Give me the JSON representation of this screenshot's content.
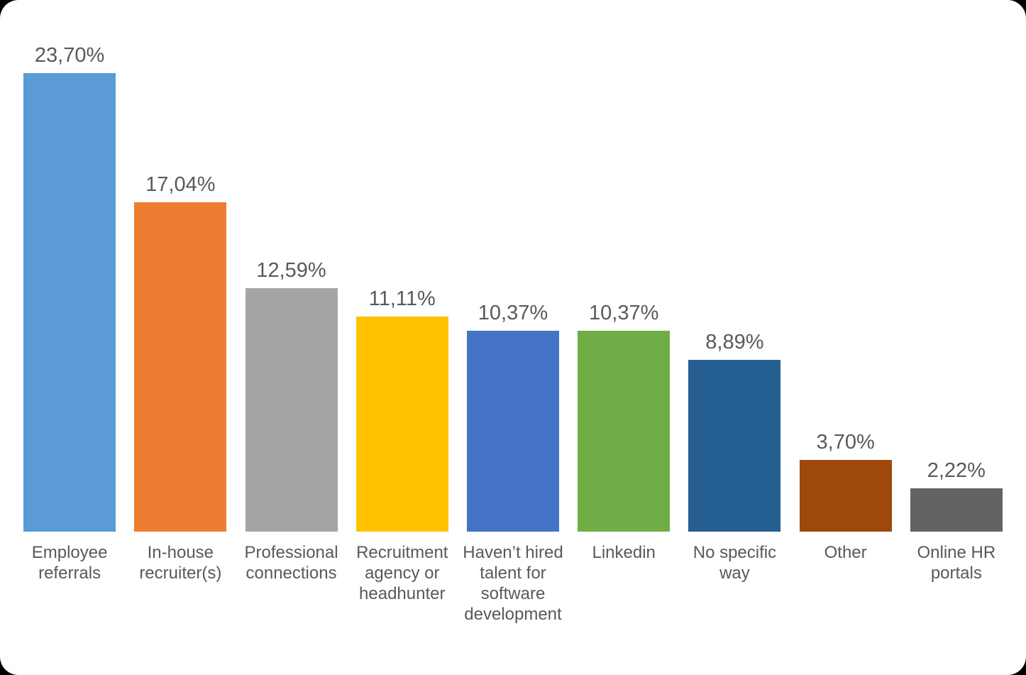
{
  "chart_data": {
    "type": "bar",
    "title": "",
    "xlabel": "",
    "ylabel": "",
    "ylim": [
      0,
      25
    ],
    "grid": false,
    "legend": false,
    "axes_visible": false,
    "value_label_format": "comma-decimal percent",
    "value_label_color": "#595959",
    "category_label_color": "#595959",
    "background_color": "#FFFFFF",
    "outside_background_color": "#000000",
    "categories": [
      "Employee referrals",
      "In-house recruiter(s)",
      "Professional connections",
      "Recruitment agency or headhunter",
      "Haven’t hired talent for software development",
      "Linkedin",
      "No specific way",
      "Other",
      "Online HR portals"
    ],
    "values": [
      23.7,
      17.04,
      12.59,
      11.11,
      10.37,
      10.37,
      8.89,
      3.7,
      2.22
    ],
    "points": [
      {
        "category": "Employee referrals",
        "value": 23.7,
        "value_label": "23,70%",
        "color": "#5B9BD5"
      },
      {
        "category": "In-house recruiter(s)",
        "value": 17.04,
        "value_label": "17,04%",
        "color": "#ED7D31"
      },
      {
        "category": "Professional connections",
        "value": 12.59,
        "value_label": "12,59%",
        "color": "#A5A5A5"
      },
      {
        "category": "Recruitment agency or headhunter",
        "value": 11.11,
        "value_label": "11,11%",
        "color": "#FFC000"
      },
      {
        "category": "Haven’t hired talent for software development",
        "value": 10.37,
        "value_label": "10,37%",
        "color": "#4472C4"
      },
      {
        "category": "Linkedin",
        "value": 10.37,
        "value_label": "10,37%",
        "color": "#70AD47"
      },
      {
        "category": "No specific way",
        "value": 8.89,
        "value_label": "8,89%",
        "color": "#255E91"
      },
      {
        "category": "Other",
        "value": 3.7,
        "value_label": "3,70%",
        "color": "#9E480E"
      },
      {
        "category": "Online HR portals",
        "value": 2.22,
        "value_label": "2,22%",
        "color": "#636363"
      }
    ]
  }
}
